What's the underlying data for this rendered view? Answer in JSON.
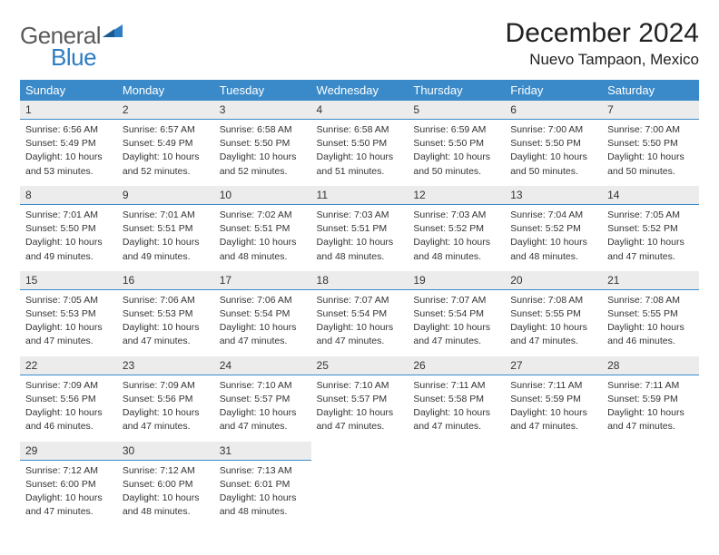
{
  "brand": {
    "name_a": "General",
    "name_b": "Blue"
  },
  "title": "December 2024",
  "location": "Nuevo Tampaon, Mexico",
  "colors": {
    "header_bar": "#3a8ac9",
    "daynum_bg": "#ececec",
    "rule": "#3a8ac9",
    "text": "#333333",
    "brand_gray": "#5a5a5a",
    "brand_blue": "#2d7dc4",
    "background": "#ffffff"
  },
  "typography": {
    "title_fontsize": 30,
    "location_fontsize": 17,
    "dow_fontsize": 13,
    "daynum_fontsize": 12,
    "cell_fontsize": 10.5,
    "logo_fontsize": 26
  },
  "dow": [
    "Sunday",
    "Monday",
    "Tuesday",
    "Wednesday",
    "Thursday",
    "Friday",
    "Saturday"
  ],
  "weeks": [
    [
      {
        "n": 1,
        "sunrise": "6:56 AM",
        "sunset": "5:49 PM",
        "daylight": "10 hours and 53 minutes."
      },
      {
        "n": 2,
        "sunrise": "6:57 AM",
        "sunset": "5:49 PM",
        "daylight": "10 hours and 52 minutes."
      },
      {
        "n": 3,
        "sunrise": "6:58 AM",
        "sunset": "5:50 PM",
        "daylight": "10 hours and 52 minutes."
      },
      {
        "n": 4,
        "sunrise": "6:58 AM",
        "sunset": "5:50 PM",
        "daylight": "10 hours and 51 minutes."
      },
      {
        "n": 5,
        "sunrise": "6:59 AM",
        "sunset": "5:50 PM",
        "daylight": "10 hours and 50 minutes."
      },
      {
        "n": 6,
        "sunrise": "7:00 AM",
        "sunset": "5:50 PM",
        "daylight": "10 hours and 50 minutes."
      },
      {
        "n": 7,
        "sunrise": "7:00 AM",
        "sunset": "5:50 PM",
        "daylight": "10 hours and 50 minutes."
      }
    ],
    [
      {
        "n": 8,
        "sunrise": "7:01 AM",
        "sunset": "5:50 PM",
        "daylight": "10 hours and 49 minutes."
      },
      {
        "n": 9,
        "sunrise": "7:01 AM",
        "sunset": "5:51 PM",
        "daylight": "10 hours and 49 minutes."
      },
      {
        "n": 10,
        "sunrise": "7:02 AM",
        "sunset": "5:51 PM",
        "daylight": "10 hours and 48 minutes."
      },
      {
        "n": 11,
        "sunrise": "7:03 AM",
        "sunset": "5:51 PM",
        "daylight": "10 hours and 48 minutes."
      },
      {
        "n": 12,
        "sunrise": "7:03 AM",
        "sunset": "5:52 PM",
        "daylight": "10 hours and 48 minutes."
      },
      {
        "n": 13,
        "sunrise": "7:04 AM",
        "sunset": "5:52 PM",
        "daylight": "10 hours and 48 minutes."
      },
      {
        "n": 14,
        "sunrise": "7:05 AM",
        "sunset": "5:52 PM",
        "daylight": "10 hours and 47 minutes."
      }
    ],
    [
      {
        "n": 15,
        "sunrise": "7:05 AM",
        "sunset": "5:53 PM",
        "daylight": "10 hours and 47 minutes."
      },
      {
        "n": 16,
        "sunrise": "7:06 AM",
        "sunset": "5:53 PM",
        "daylight": "10 hours and 47 minutes."
      },
      {
        "n": 17,
        "sunrise": "7:06 AM",
        "sunset": "5:54 PM",
        "daylight": "10 hours and 47 minutes."
      },
      {
        "n": 18,
        "sunrise": "7:07 AM",
        "sunset": "5:54 PM",
        "daylight": "10 hours and 47 minutes."
      },
      {
        "n": 19,
        "sunrise": "7:07 AM",
        "sunset": "5:54 PM",
        "daylight": "10 hours and 47 minutes."
      },
      {
        "n": 20,
        "sunrise": "7:08 AM",
        "sunset": "5:55 PM",
        "daylight": "10 hours and 47 minutes."
      },
      {
        "n": 21,
        "sunrise": "7:08 AM",
        "sunset": "5:55 PM",
        "daylight": "10 hours and 46 minutes."
      }
    ],
    [
      {
        "n": 22,
        "sunrise": "7:09 AM",
        "sunset": "5:56 PM",
        "daylight": "10 hours and 46 minutes."
      },
      {
        "n": 23,
        "sunrise": "7:09 AM",
        "sunset": "5:56 PM",
        "daylight": "10 hours and 47 minutes."
      },
      {
        "n": 24,
        "sunrise": "7:10 AM",
        "sunset": "5:57 PM",
        "daylight": "10 hours and 47 minutes."
      },
      {
        "n": 25,
        "sunrise": "7:10 AM",
        "sunset": "5:57 PM",
        "daylight": "10 hours and 47 minutes."
      },
      {
        "n": 26,
        "sunrise": "7:11 AM",
        "sunset": "5:58 PM",
        "daylight": "10 hours and 47 minutes."
      },
      {
        "n": 27,
        "sunrise": "7:11 AM",
        "sunset": "5:59 PM",
        "daylight": "10 hours and 47 minutes."
      },
      {
        "n": 28,
        "sunrise": "7:11 AM",
        "sunset": "5:59 PM",
        "daylight": "10 hours and 47 minutes."
      }
    ],
    [
      {
        "n": 29,
        "sunrise": "7:12 AM",
        "sunset": "6:00 PM",
        "daylight": "10 hours and 47 minutes."
      },
      {
        "n": 30,
        "sunrise": "7:12 AM",
        "sunset": "6:00 PM",
        "daylight": "10 hours and 48 minutes."
      },
      {
        "n": 31,
        "sunrise": "7:13 AM",
        "sunset": "6:01 PM",
        "daylight": "10 hours and 48 minutes."
      },
      null,
      null,
      null,
      null
    ]
  ],
  "labels": {
    "sunrise": "Sunrise:",
    "sunset": "Sunset:",
    "daylight": "Daylight:"
  }
}
